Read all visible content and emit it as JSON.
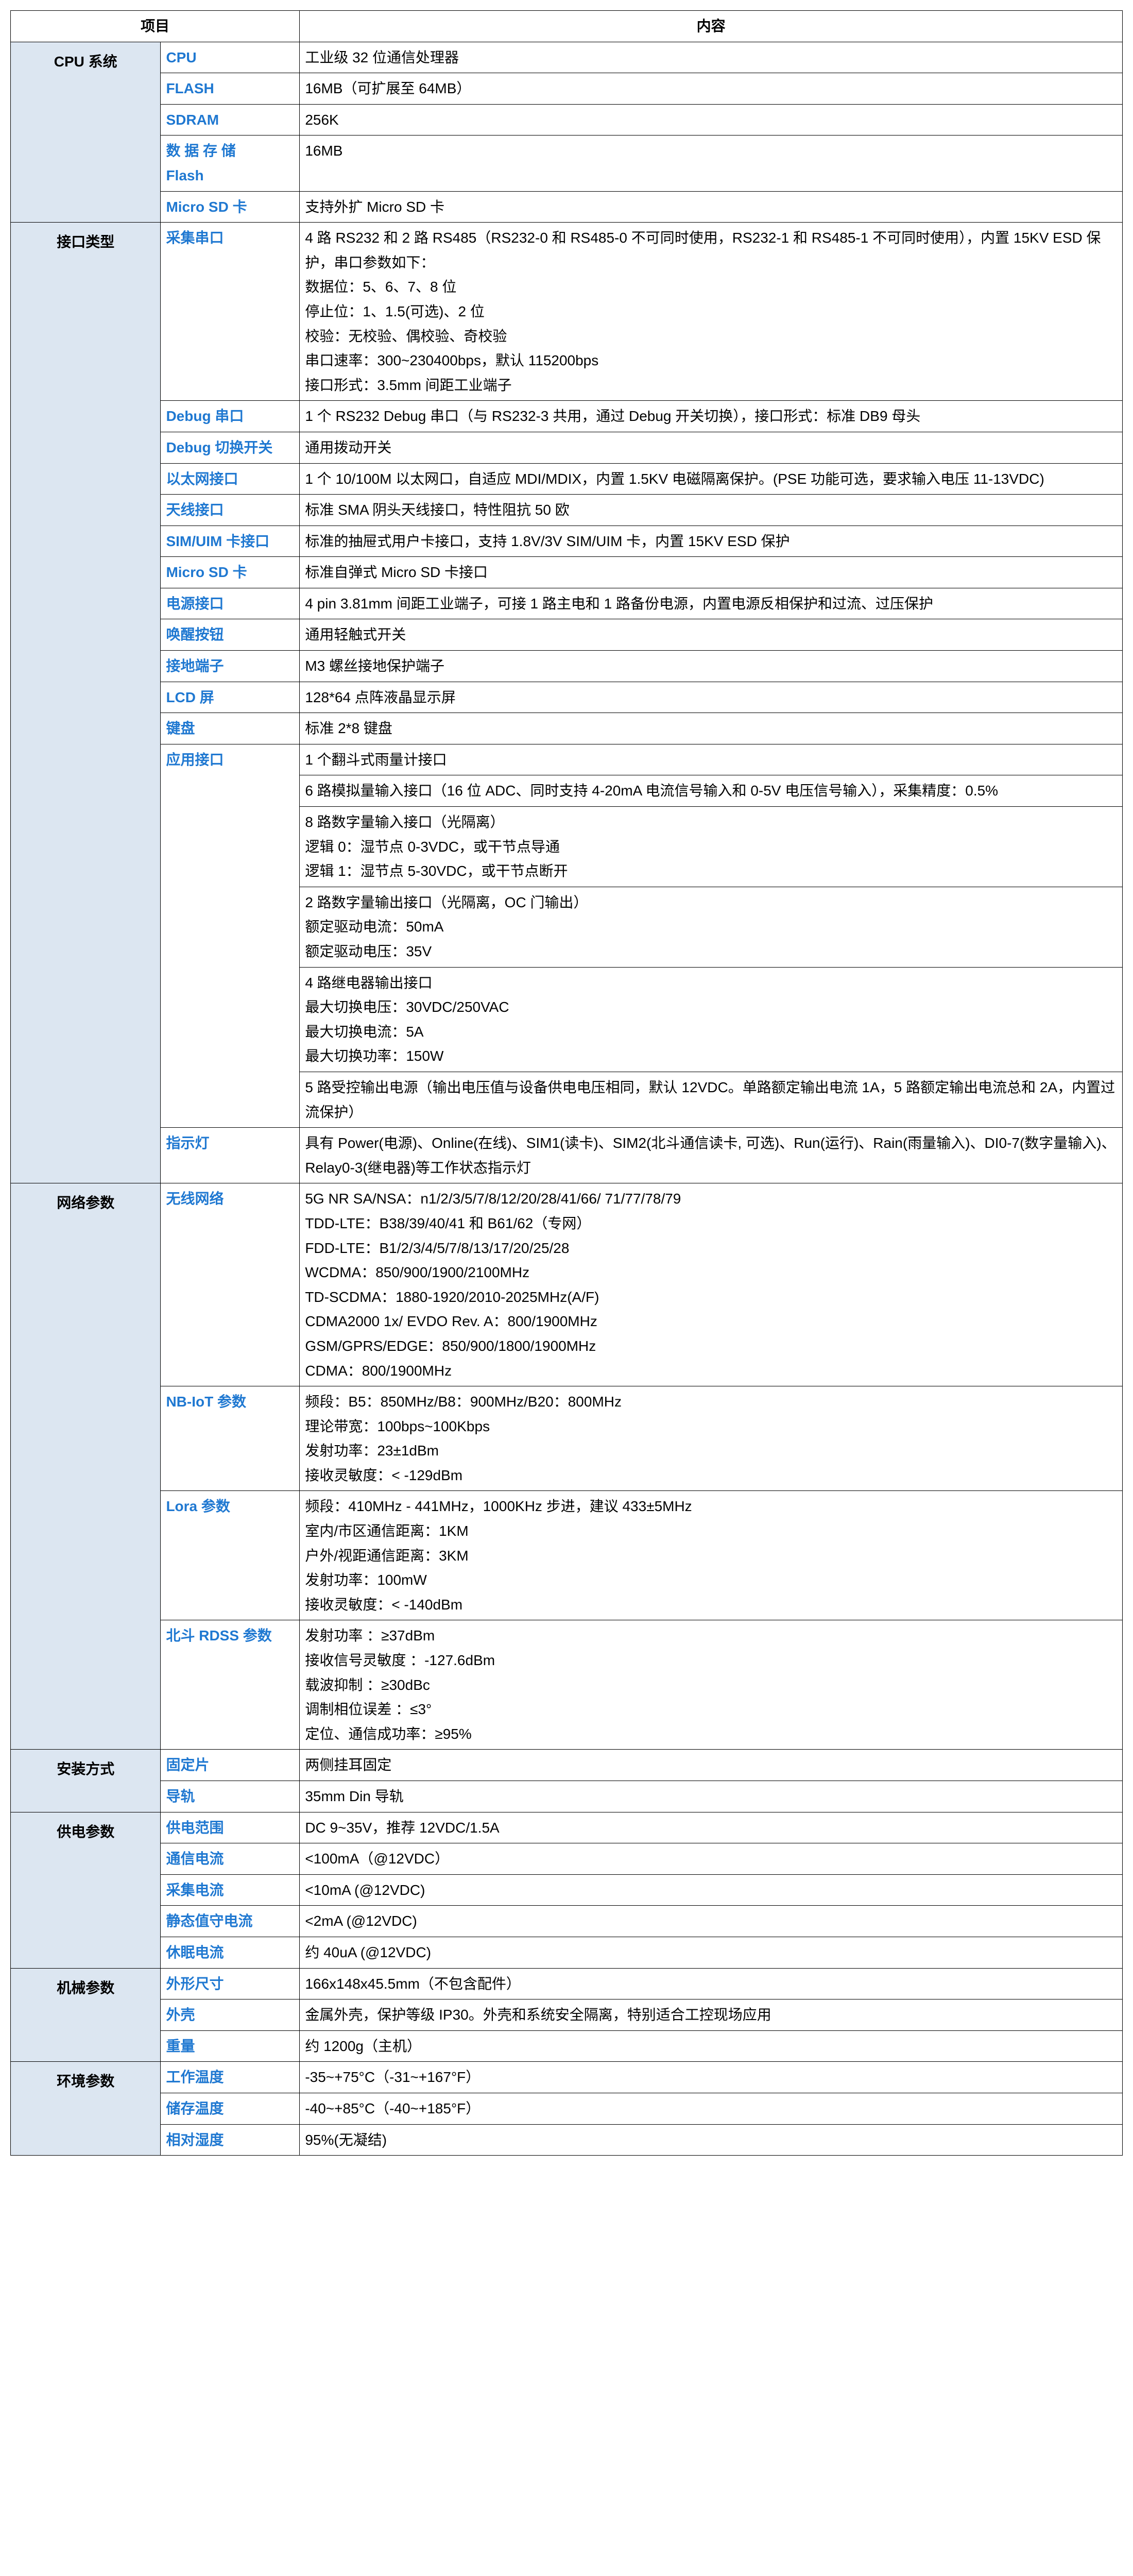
{
  "header": {
    "item": "项目",
    "content": "内容"
  },
  "colors": {
    "cat_bg": "#dce6f1",
    "sub_text": "#1f78d1",
    "border": "#000000"
  },
  "cpu": {
    "title": "CPU 系统",
    "cpu_l": "CPU",
    "cpu_v": "工业级 32 位通信处理器",
    "flash_l": "FLASH",
    "flash_v": "16MB（可扩展至 64MB）",
    "sdram_l": "SDRAM",
    "sdram_v": "256K",
    "dflash_l": "数 据 存 储\nFlash",
    "dflash_v": "16MB",
    "msd_l": "Micro SD 卡",
    "msd_v": "支持外扩 Micro SD 卡"
  },
  "iface": {
    "title": "接口类型",
    "collect_l": "采集串口",
    "collect_v": "4 路 RS232 和 2 路 RS485（RS232-0 和 RS485-0 不可同时使用，RS232-1 和 RS485-1 不可同时使用），内置 15KV ESD 保护，串口参数如下：\n数据位：5、6、7、8 位\n停止位：1、1.5(可选)、2 位\n校验：无校验、偶校验、奇校验\n串口速率：300~230400bps，默认 115200bps\n接口形式：3.5mm 间距工业端子",
    "debug_l": "Debug 串口",
    "debug_v": "1 个 RS232 Debug 串口（与 RS232-3 共用，通过 Debug 开关切换），接口形式：标准 DB9 母头",
    "dsw_l": "Debug 切换开关",
    "dsw_v": "通用拨动开关",
    "eth_l": "以太网接口",
    "eth_v": "1 个 10/100M 以太网口，自适应 MDI/MDIX，内置 1.5KV 电磁隔离保护。(PSE 功能可选，要求输入电压 11-13VDC)",
    "ant_l": "天线接口",
    "ant_v": "标准 SMA 阴头天线接口，特性阻抗 50 欧",
    "sim_l": "SIM/UIM  卡接口",
    "sim_v": "标准的抽屉式用户卡接口，支持 1.8V/3V SIM/UIM 卡，内置 15KV ESD 保护",
    "msd_l": "Micro SD 卡",
    "msd_v": "标准自弹式 Micro SD 卡接口",
    "pwr_l": "电源接口",
    "pwr_v": "4 pin 3.81mm 间距工业端子，可接 1 路主电和 1 路备份电源，内置电源反相保护和过流、过压保护",
    "wake_l": "唤醒按钮",
    "wake_v": "通用轻触式开关",
    "gnd_l": "接地端子",
    "gnd_v": "M3 螺丝接地保护端子",
    "lcd_l": "LCD 屏",
    "lcd_v": "128*64 点阵液晶显示屏",
    "kb_l": "键盘",
    "kb_v": "标准 2*8 键盘",
    "app_l": "应用接口",
    "app_v1": "1 个翻斗式雨量计接口",
    "app_v2": "6 路模拟量输入接口（16 位 ADC、同时支持 4-20mA 电流信号输入和  0-5V 电压信号输入），采集精度：0.5%",
    "app_v3": "8 路数字量输入接口（光隔离）\n逻辑 0：湿节点 0-3VDC，或干节点导通\n逻辑 1：湿节点 5-30VDC，或干节点断开",
    "app_v4": "2 路数字量输出接口（光隔离，OC 门输出）\n额定驱动电流：50mA\n额定驱动电压：35V",
    "app_v5": "4 路继电器输出接口\n最大切换电压：30VDC/250VAC\n最大切换电流：5A\n最大切换功率：150W",
    "app_v6": "5 路受控输出电源（输出电压值与设备供电电压相同，默认 12VDC。单路额定输出电流 1A，5 路额定输出电流总和 2A，内置过流保护）",
    "led_l": "指示灯",
    "led_v": "具有 Power(电源)、Online(在线)、SIM1(读卡)、SIM2(北斗通信读卡, 可选)、Run(运行)、Rain(雨量输入)、DI0-7(数字量输入)、Relay0-3(继电器)等工作状态指示灯"
  },
  "net": {
    "title": "网络参数",
    "wl_l": "无线网络",
    "wl_v": "5G NR SA/NSA：n1/2/3/5/7/8/12/20/28/41/66/ 71/77/78/79\nTDD-LTE：B38/39/40/41 和 B61/62（专网）\nFDD-LTE：B1/2/3/4/5/7/8/13/17/20/25/28\nWCDMA：850/900/1900/2100MHz\nTD-SCDMA：1880-1920/2010-2025MHz(A/F)\nCDMA2000 1x/ EVDO Rev. A：800/1900MHz\nGSM/GPRS/EDGE：850/900/1800/1900MHz\nCDMA：800/1900MHz",
    "nb_l": "NB-IoT 参数",
    "nb_v": "频段：B5：850MHz/B8：900MHz/B20：800MHz\n理论带宽：100bps~100Kbps\n发射功率：23±1dBm\n接收灵敏度：< -129dBm",
    "lora_l": "Lora 参数",
    "lora_v": "频段：410MHz - 441MHz，1000KHz  步进，建议 433±5MHz\n室内/市区通信距离：1KM\n户外/视距通信距离：3KM\n发射功率：100mW\n接收灵敏度：< -140dBm",
    "bd_l": "北斗 RDSS 参数",
    "bd_v": "发射功率 ：≥37dBm\n接收信号灵敏度 ：-127.6dBm\n载波抑制 ：≥30dBc\n调制相位误差 ：≤3°\n定位、通信成功率：≥95%"
  },
  "install": {
    "title": "安装方式",
    "fix_l": "固定片",
    "fix_v": "两侧挂耳固定",
    "rail_l": "导轨",
    "rail_v": "35mm Din 导轨"
  },
  "power": {
    "title": "供电参数",
    "range_l": "供电范围",
    "range_v": "DC 9~35V，推荐 12VDC/1.5A",
    "comm_l": "通信电流",
    "comm_v": "<100mA（@12VDC）",
    "col_l": "采集电流",
    "col_v": "<10mA (@12VDC)",
    "idle_l": "静态值守电流",
    "idle_v": "<2mA (@12VDC)",
    "sleep_l": "休眠电流",
    "sleep_v": "约 40uA (@12VDC)"
  },
  "mech": {
    "title": "机械参数",
    "size_l": "外形尺寸",
    "size_v": "166x148x45.5mm（不包含配件）",
    "case_l": "外壳",
    "case_v": "金属外壳，保护等级 IP30。外壳和系统安全隔离，特别适合工控现场应用",
    "weight_l": "重量",
    "weight_v": "约 1200g（主机）"
  },
  "env": {
    "title": "环境参数",
    "work_l": "工作温度",
    "work_v": "-35~+75°C（-31~+167°F）",
    "store_l": "储存温度",
    "store_v": "-40~+85°C（-40~+185°F）",
    "hum_l": "相对湿度",
    "hum_v": "95%(无凝结)"
  }
}
